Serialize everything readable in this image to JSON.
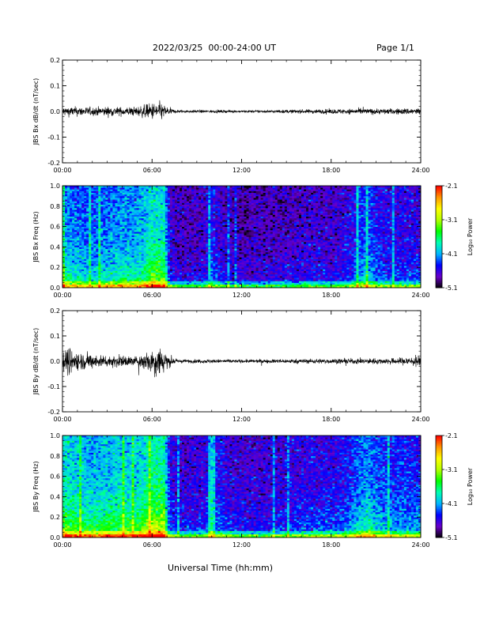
{
  "header": {
    "title": "2022/03/25  00:00-24:00 UT",
    "page": "Page 1/1"
  },
  "chart_data": [
    {
      "type": "line",
      "id": "bx-dbdt",
      "ylabel": "JBS Bx dB/dt (nT/sec)",
      "xlim": [
        "00:00",
        "24:00"
      ],
      "ylim": [
        -0.2,
        0.2
      ],
      "x_ticks": [
        "00:00",
        "06:00",
        "12:00",
        "18:00",
        "24:00"
      ],
      "y_ticks": [
        "-0.2",
        "-0.1",
        "0.0",
        "0.1",
        "0.2"
      ],
      "amplitude_envelope": {
        "hours": [
          0,
          1,
          2,
          3,
          4,
          5,
          6,
          6.5,
          7,
          7.5,
          8,
          10,
          12,
          14,
          16,
          18,
          20,
          22,
          24
        ],
        "amplitude": [
          0.02,
          0.02,
          0.018,
          0.02,
          0.018,
          0.02,
          0.035,
          0.04,
          0.02,
          0.008,
          0.006,
          0.006,
          0.005,
          0.006,
          0.008,
          0.01,
          0.012,
          0.012,
          0.015
        ]
      },
      "trace_color": "#000000"
    },
    {
      "type": "heatmap",
      "id": "bx-freq",
      "ylabel": "JBS Bx Freq (Hz)",
      "xlim": [
        "00:00",
        "24:00"
      ],
      "ylim": [
        0.0,
        1.0
      ],
      "x_ticks": [
        "00:00",
        "06:00",
        "12:00",
        "18:00",
        "24:00"
      ],
      "y_ticks": [
        "0.0",
        "0.2",
        "0.4",
        "0.6",
        "0.8",
        "1.0"
      ],
      "colorbar": {
        "label": "Log₁₀ Power",
        "ticks": [
          "-2.1",
          "-3.1",
          "-4.1",
          "-5.1"
        ],
        "range": [
          -5.1,
          -2.1
        ],
        "colormap": [
          "#000000",
          "#6a00c8",
          "#0000ff",
          "#00b4ff",
          "#00ffb4",
          "#00ff00",
          "#b4ff00",
          "#ffff00",
          "#ff9600",
          "#ff0000"
        ]
      },
      "activity_profile": {
        "hours": [
          0,
          1,
          2,
          3,
          4,
          5,
          6,
          6.8,
          7.2,
          8,
          9.5,
          10,
          11,
          12,
          14,
          16,
          17,
          18,
          19,
          20,
          20.5,
          21,
          22,
          23,
          24
        ],
        "level": [
          0.55,
          0.5,
          0.45,
          0.5,
          0.55,
          0.55,
          0.7,
          0.7,
          0.25,
          0.2,
          0.22,
          0.35,
          0.2,
          0.18,
          0.2,
          0.22,
          0.25,
          0.22,
          0.28,
          0.4,
          0.45,
          0.35,
          0.3,
          0.3,
          0.28
        ]
      }
    },
    {
      "type": "line",
      "id": "by-dbdt",
      "ylabel": "JBS By dB/dt (nT/sec)",
      "xlim": [
        "00:00",
        "24:00"
      ],
      "ylim": [
        -0.2,
        0.2
      ],
      "x_ticks": [
        "00:00",
        "06:00",
        "12:00",
        "18:00",
        "24:00"
      ],
      "y_ticks": [
        "-0.2",
        "-0.1",
        "0.0",
        "0.1",
        "0.2"
      ],
      "amplitude_envelope": {
        "hours": [
          0,
          0.5,
          1,
          2,
          3,
          4,
          5,
          6,
          6.5,
          7,
          7.5,
          8,
          10,
          12,
          14,
          16,
          18,
          20,
          22,
          23,
          24
        ],
        "amplitude": [
          0.05,
          0.06,
          0.04,
          0.03,
          0.025,
          0.025,
          0.02,
          0.055,
          0.07,
          0.035,
          0.01,
          0.008,
          0.008,
          0.007,
          0.008,
          0.01,
          0.01,
          0.012,
          0.012,
          0.018,
          0.025
        ]
      },
      "trace_color": "#000000"
    },
    {
      "type": "heatmap",
      "id": "by-freq",
      "ylabel": "JBS By Freq (Hz)",
      "xlim": [
        "00:00",
        "24:00"
      ],
      "ylim": [
        0.0,
        1.0
      ],
      "x_ticks": [
        "00:00",
        "06:00",
        "12:00",
        "18:00",
        "24:00"
      ],
      "y_ticks": [
        "0.0",
        "0.2",
        "0.4",
        "0.6",
        "0.8",
        "1.0"
      ],
      "colorbar": {
        "label": "Log₁₀ Power",
        "ticks": [
          "-2.1",
          "-3.1",
          "-4.1",
          "-5.1"
        ],
        "range": [
          -5.1,
          -2.1
        ],
        "colormap": [
          "#000000",
          "#6a00c8",
          "#0000ff",
          "#00b4ff",
          "#00ffb4",
          "#00ff00",
          "#b4ff00",
          "#ffff00",
          "#ff9600",
          "#ff0000"
        ]
      },
      "activity_profile": {
        "hours": [
          0,
          1,
          2,
          3,
          4,
          5,
          6,
          6.8,
          7.2,
          8,
          9.5,
          10,
          11,
          12,
          14,
          16,
          17,
          18,
          19,
          20,
          20.5,
          21,
          22,
          23,
          24
        ],
        "level": [
          0.7,
          0.65,
          0.6,
          0.65,
          0.65,
          0.65,
          0.8,
          0.8,
          0.3,
          0.25,
          0.28,
          0.4,
          0.28,
          0.25,
          0.25,
          0.3,
          0.32,
          0.3,
          0.35,
          0.5,
          0.55,
          0.45,
          0.4,
          0.4,
          0.38
        ]
      }
    }
  ],
  "xlabel": "Universal Time (hh:mm)"
}
